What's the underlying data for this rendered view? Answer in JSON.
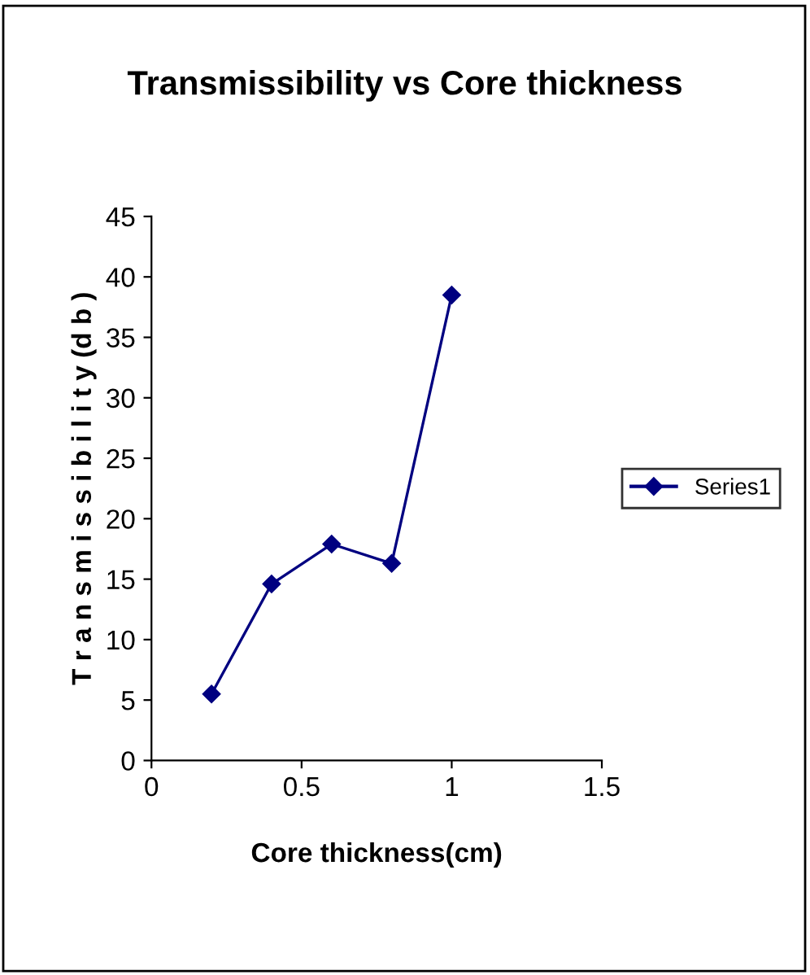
{
  "chart_data": {
    "type": "line",
    "title": "Transmissibility vs Core thickness",
    "xlabel": "Core thickness(cm)",
    "ylabel": "T r a n s m i s s i b i l i t y (d b )",
    "x": [
      0.2,
      0.4,
      0.6,
      0.8,
      1.0
    ],
    "series": [
      {
        "name": "Series1",
        "color": "#000080",
        "values": [
          5.5,
          14.6,
          17.9,
          16.3,
          38.5
        ]
      }
    ],
    "xlim": [
      0,
      1.5
    ],
    "xticks": [
      0,
      0.5,
      1,
      1.5
    ],
    "ylim": [
      0,
      45
    ],
    "yticks": [
      0,
      5,
      10,
      15,
      20,
      25,
      30,
      35,
      40,
      45
    ],
    "grid": false,
    "legend": "right",
    "marker": "diamond",
    "line_style": "solid"
  }
}
